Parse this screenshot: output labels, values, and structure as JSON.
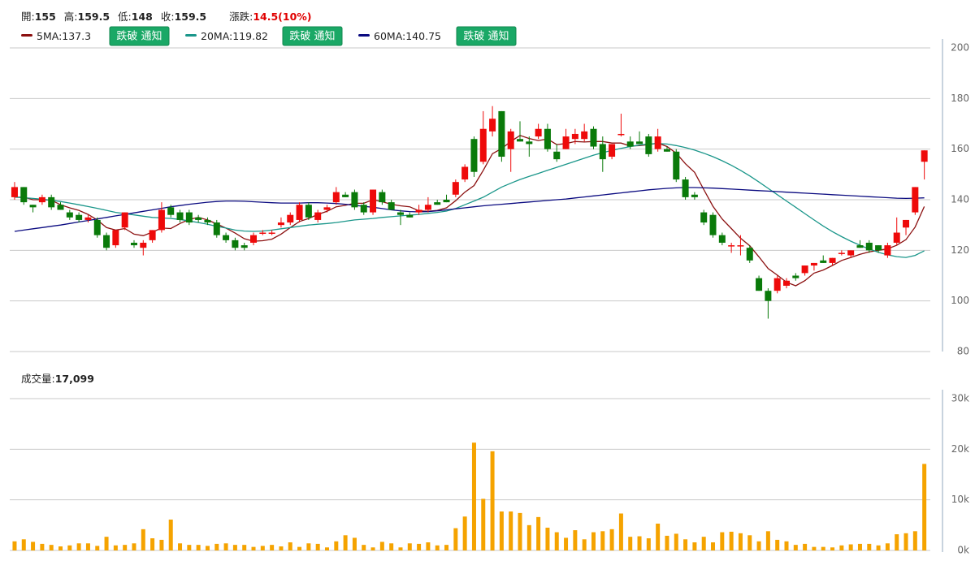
{
  "chart_data": {
    "type": "candlestick",
    "info_labels": {
      "open": "開:",
      "high": "高:",
      "low": "低:",
      "close": "收:",
      "change": "漲跌:"
    },
    "change": 14.5,
    "change_pct": {
      "value": 10,
      "label": "(10%)"
    },
    "up_color": "#ee0a0a",
    "down_color": "#0a7a0a",
    "volume_color": "#f5a300",
    "ylim": [
      80,
      200
    ],
    "yticks": [
      80,
      100,
      120,
      140,
      160,
      180,
      200
    ],
    "grid": true,
    "open": [
      141,
      145,
      138,
      139,
      141,
      138,
      135,
      134,
      132,
      132,
      126,
      122,
      129,
      123,
      121,
      124,
      128,
      137,
      135,
      135,
      133,
      132,
      131,
      126,
      124,
      122,
      123,
      127,
      127,
      130,
      131,
      132,
      138,
      132,
      136,
      139,
      142,
      143,
      138,
      135,
      143,
      139,
      135,
      134,
      135,
      136,
      139,
      140,
      142,
      148,
      164,
      155,
      167,
      175,
      160,
      164,
      163,
      165,
      168,
      159,
      160,
      164,
      164,
      168,
      162,
      157,
      166,
      163,
      163,
      165,
      160,
      160,
      159,
      148,
      142,
      135,
      134,
      126,
      122,
      122,
      121,
      109,
      104,
      104,
      106,
      110,
      111,
      114,
      116,
      115,
      119,
      118,
      122,
      123,
      122,
      118,
      123,
      129,
      135,
      155
    ],
    "high": [
      147,
      145,
      138,
      142,
      142,
      139,
      136,
      135,
      134,
      133,
      127,
      128,
      135,
      124,
      124,
      128,
      139,
      138,
      136,
      136,
      134,
      133,
      132,
      127,
      125,
      123,
      127,
      128,
      128,
      133,
      135,
      139,
      139,
      136,
      138,
      145,
      143,
      144,
      139,
      144,
      144,
      140,
      136,
      135,
      138,
      141,
      140,
      142,
      148,
      154,
      165,
      175,
      177,
      175,
      168,
      171,
      165,
      170,
      170,
      162,
      168,
      168,
      170,
      169,
      165,
      162,
      174,
      165,
      167,
      166,
      168,
      161,
      160,
      149,
      143,
      136,
      135,
      127,
      123,
      126,
      122,
      110,
      105,
      110,
      109,
      111,
      114,
      115,
      118,
      117,
      120,
      120,
      124,
      124,
      122,
      123,
      133,
      132,
      145,
      159.5
    ],
    "low": [
      140,
      138,
      135,
      138,
      136,
      136,
      132,
      131,
      131,
      125,
      120,
      121,
      128,
      121,
      118,
      123,
      127,
      133,
      131,
      130,
      131,
      130,
      125,
      123,
      120,
      120,
      122,
      126,
      126,
      129,
      130,
      131,
      132,
      131,
      135,
      138,
      141,
      136,
      134,
      134,
      138,
      136,
      130,
      133,
      134,
      135,
      138,
      139,
      141,
      147,
      149,
      154,
      165,
      155,
      151,
      163,
      157,
      164,
      159,
      155,
      160,
      162,
      163,
      160,
      151,
      156,
      165,
      160,
      162,
      157,
      159,
      159,
      147,
      140,
      140,
      130,
      125,
      122,
      119,
      118,
      115,
      104,
      93,
      103,
      105,
      108,
      110,
      112,
      115,
      114,
      118,
      117,
      121,
      119,
      119,
      117,
      122,
      126,
      134,
      148
    ],
    "close": [
      145,
      139,
      137,
      141,
      137,
      136,
      133,
      132,
      133,
      126,
      121,
      128,
      135,
      122,
      123,
      128,
      136,
      134,
      132,
      131,
      132,
      131,
      126,
      124,
      121,
      121,
      126,
      127,
      127,
      131,
      134,
      138,
      133,
      135,
      137,
      143,
      141,
      137,
      135,
      144,
      139,
      136,
      134,
      133,
      136,
      138,
      138,
      139,
      147,
      153,
      151,
      168,
      172,
      157,
      167,
      163,
      162,
      168,
      160,
      156,
      165,
      166,
      167,
      161,
      156,
      162,
      166,
      161,
      162,
      158,
      165,
      159,
      148,
      141,
      141,
      131,
      126,
      123,
      122,
      122,
      116,
      104,
      100,
      109,
      108,
      109,
      114,
      115,
      115,
      117,
      119,
      120,
      121,
      120,
      120,
      122,
      127,
      132,
      145,
      159.5
    ],
    "series": [
      {
        "name": "5MA:",
        "current": 137.3,
        "color": "#8b1010",
        "button": "跌破 通知",
        "values": [
          141,
          141,
          140,
          140,
          139.8,
          138,
          136.8,
          135.8,
          134.2,
          132,
          129,
          128,
          128.6,
          126.4,
          125.8,
          127.2,
          128.8,
          128.6,
          130.6,
          132.2,
          133,
          132,
          130.4,
          128.8,
          126.8,
          124.6,
          123.6,
          123.8,
          124.4,
          126.4,
          129,
          131.4,
          132.6,
          134.2,
          135.4,
          137.2,
          137.8,
          138.6,
          138.6,
          140,
          139.2,
          138.2,
          137.6,
          137.2,
          135.6,
          135.4,
          135.8,
          136.8,
          139.6,
          143,
          145.6,
          151.6,
          158.2,
          160.2,
          163,
          165.4,
          164.2,
          163.4,
          164,
          161.8,
          162.2,
          163,
          162.8,
          163,
          163,
          162.4,
          162.4,
          161.2,
          161.4,
          161.8,
          162.4,
          161,
          158.4,
          154.2,
          150.8,
          144,
          137.4,
          132.4,
          128.6,
          124.8,
          121.8,
          117.4,
          112.8,
          110.2,
          107.4,
          106,
          108,
          111,
          112.2,
          114,
          116,
          117.2,
          118.4,
          119.4,
          120,
          120.6,
          122,
          124.2,
          129.2,
          137.3
        ]
      },
      {
        "name": "20MA:",
        "current": 119.82,
        "color": "#1a968a",
        "button": "跌破 通知",
        "values": [
          141,
          140.8,
          140.5,
          140.2,
          139.8,
          139.3,
          138.7,
          138,
          137.3,
          136.6,
          135.8,
          135,
          134.5,
          134,
          133.5,
          133,
          132.8,
          132.6,
          132.2,
          131.6,
          131,
          130.3,
          129.5,
          128.8,
          128,
          127.6,
          127.5,
          127.6,
          128,
          128.5,
          129,
          129.5,
          130,
          130.3,
          130.6,
          131,
          131.5,
          132,
          132.3,
          132.6,
          133,
          133.3,
          133.6,
          133.9,
          134.2,
          134.6,
          135,
          135.5,
          136.5,
          138,
          139.5,
          141,
          143,
          145,
          146.5,
          148,
          149.2,
          150.4,
          151.6,
          152.8,
          154,
          155.2,
          156.4,
          157.6,
          158.6,
          159.5,
          160.3,
          161,
          161.6,
          162,
          162.2,
          162,
          161.4,
          160.6,
          159.6,
          158.4,
          157,
          155.4,
          153.6,
          151.6,
          149.4,
          147,
          144.5,
          142,
          139.5,
          137,
          134.5,
          132,
          129.6,
          127.4,
          125.4,
          123.6,
          122,
          120.5,
          119.2,
          118.2,
          117.5,
          117.2,
          118,
          119.82
        ]
      },
      {
        "name": "60MA:",
        "current": 140.75,
        "color": "#0a0a80",
        "button": "跌破 通知",
        "values": [
          127.5,
          128,
          128.5,
          129,
          129.5,
          130,
          130.6,
          131.2,
          131.8,
          132.4,
          133,
          133.6,
          134.2,
          134.8,
          135.4,
          136,
          136.6,
          137.2,
          137.7,
          138.2,
          138.6,
          139,
          139.3,
          139.5,
          139.5,
          139.4,
          139.2,
          139,
          138.8,
          138.7,
          138.7,
          138.7,
          138.8,
          138.8,
          138.7,
          138.5,
          138.2,
          137.8,
          137.4,
          137,
          136.5,
          136,
          135.6,
          135.3,
          135.2,
          135.3,
          135.6,
          136,
          136.4,
          136.8,
          137.2,
          137.6,
          137.9,
          138.2,
          138.5,
          138.8,
          139.1,
          139.4,
          139.7,
          140,
          140.3,
          140.7,
          141.1,
          141.5,
          141.9,
          142.3,
          142.7,
          143.1,
          143.5,
          143.9,
          144.2,
          144.5,
          144.7,
          144.8,
          144.8,
          144.7,
          144.6,
          144.4,
          144.2,
          144,
          143.8,
          143.6,
          143.4,
          143.2,
          143,
          142.8,
          142.6,
          142.4,
          142.2,
          142,
          141.8,
          141.6,
          141.4,
          141.2,
          141,
          140.8,
          140.6,
          140.5,
          140.6,
          140.75
        ]
      }
    ],
    "volume_title": "成交量:",
    "volume_current_label": "17,099",
    "volume_ylim": [
      0,
      30000
    ],
    "volume_yticks": [
      {
        "value": 0,
        "label": "0k"
      },
      {
        "value": 10000,
        "label": "10k"
      },
      {
        "value": 20000,
        "label": "20k"
      },
      {
        "value": 30000,
        "label": "30k"
      }
    ],
    "volume": [
      1800,
      2200,
      1700,
      1300,
      1100,
      800,
      1000,
      1400,
      1400,
      900,
      2700,
      1000,
      1100,
      1400,
      4200,
      2400,
      2100,
      6100,
      1400,
      1100,
      1100,
      900,
      1300,
      1400,
      1100,
      1100,
      700,
      900,
      1100,
      800,
      1600,
      700,
      1400,
      1300,
      600,
      1800,
      3000,
      2500,
      1100,
      600,
      1700,
      1400,
      600,
      1400,
      1300,
      1600,
      1000,
      1100,
      4400,
      6700,
      21300,
      10200,
      19600,
      7700,
      7700,
      7400,
      5000,
      6600,
      4500,
      3600,
      2500,
      4000,
      2200,
      3600,
      3800,
      4200,
      7300,
      2700,
      2800,
      2400,
      5300,
      2900,
      3300,
      2200,
      1600,
      2700,
      1600,
      3600,
      3700,
      3400,
      3000,
      1800,
      3800,
      2100,
      1800,
      1100,
      1300,
      700,
      700,
      600,
      1000,
      1200,
      1300,
      1300,
      1000,
      1400,
      3200,
      3400,
      3800,
      17099
    ]
  }
}
